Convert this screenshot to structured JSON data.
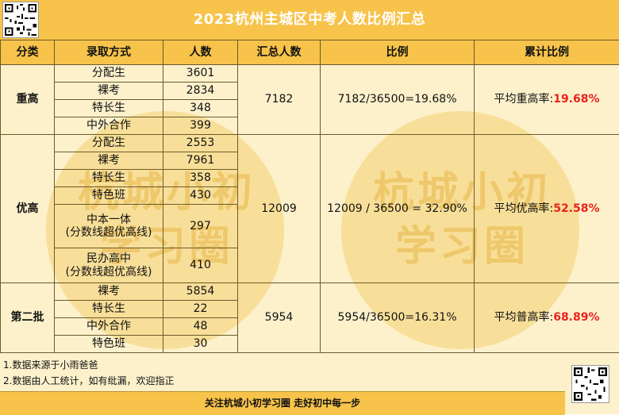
{
  "title": "2023杭州主城区中考人数比例汇总",
  "headers": [
    "分类",
    "录取方式",
    "人数",
    "汇总人数",
    "比例",
    "累计比例"
  ],
  "groups": [
    {
      "category": "重高",
      "rows": [
        {
          "method": "分配生",
          "count": "3601"
        },
        {
          "method": "裸考",
          "count": "2834"
        },
        {
          "method": "特长生",
          "count": "348"
        },
        {
          "method": "中外合作",
          "count": "399"
        }
      ],
      "total": "7182",
      "ratio": "7182/36500=19.68%",
      "cum_label": "平均重高率:",
      "cum_value": "19.68%"
    },
    {
      "category": "优高",
      "rows": [
        {
          "method": "分配生",
          "count": "2553"
        },
        {
          "method": "裸考",
          "count": "7961"
        },
        {
          "method": "特长生",
          "count": "358"
        },
        {
          "method": "特色班",
          "count": "430"
        },
        {
          "method": "中本一体",
          "sub": "(分数线超优高线)",
          "count": "297"
        },
        {
          "method": "民办高中",
          "sub": "(分数线超优高线)",
          "count": "410"
        }
      ],
      "total": "12009",
      "ratio": "12009 / 36500 = 32.90%",
      "cum_label": "平均优高率:",
      "cum_value": "52.58%"
    },
    {
      "category": "第二批",
      "rows": [
        {
          "method": "裸考",
          "count": "5854"
        },
        {
          "method": "特长生",
          "count": "22"
        },
        {
          "method": "中外合作",
          "count": "48"
        },
        {
          "method": "特色班",
          "count": "30"
        }
      ],
      "total": "5954",
      "ratio": "5954/36500=16.31%",
      "cum_label": "平均普高率:",
      "cum_value": "68.89%"
    }
  ],
  "notes": [
    "1.数据来源于小雨爸爸",
    "2.数据由人工统计，如有纰漏，欢迎指正"
  ],
  "footer": "关注杭城小初学习圈  走好初中每一步",
  "watermark": {
    "line1": "杭城小初",
    "line2": "学习圈"
  },
  "colors": {
    "header_bg": "#f7c34a",
    "body_bg": "#fdf1cc",
    "highlight": "#e8231e"
  }
}
